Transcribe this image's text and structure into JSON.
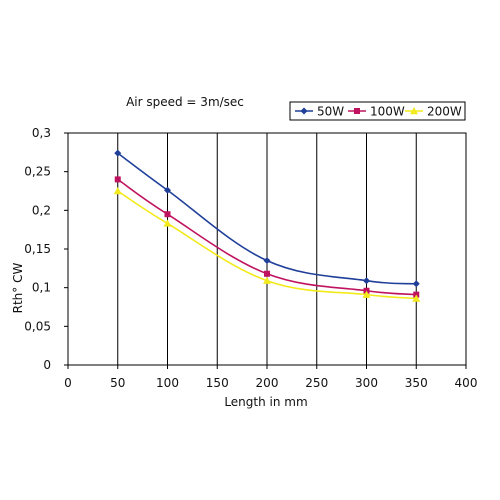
{
  "chart_data": {
    "type": "line",
    "annotation": "Air speed = 3m/sec",
    "xlabel": "Length in mm",
    "ylabel": "Rth° CW",
    "xlim": [
      0,
      400
    ],
    "ylim": [
      0,
      0.3
    ],
    "x_ticks": [
      0,
      50,
      100,
      150,
      200,
      250,
      300,
      350,
      400
    ],
    "x_tick_labels": [
      "0",
      "50",
      "100",
      "150",
      "200",
      "250",
      "300",
      "350",
      "400"
    ],
    "y_ticks": [
      0,
      0.05,
      0.1,
      0.15,
      0.2,
      0.25,
      0.3
    ],
    "y_tick_labels": [
      "0",
      "0,05",
      "0,1",
      "0,15",
      "0,2",
      "0,25",
      "0,3"
    ],
    "grid": "vertical",
    "legend_position": "top-right",
    "x": [
      50,
      100,
      200,
      300,
      350
    ],
    "series": [
      {
        "name": "50W",
        "values": [
          0.274,
          0.226,
          0.135,
          0.109,
          0.105
        ],
        "color": "#1f3f99",
        "marker": "diamond"
      },
      {
        "name": "100W",
        "values": [
          0.24,
          0.195,
          0.118,
          0.096,
          0.091
        ],
        "color": "#c0135f",
        "marker": "square"
      },
      {
        "name": "200W",
        "values": [
          0.225,
          0.183,
          0.109,
          0.091,
          0.086
        ],
        "color": "#f2ea1a",
        "marker": "triangle"
      }
    ]
  }
}
